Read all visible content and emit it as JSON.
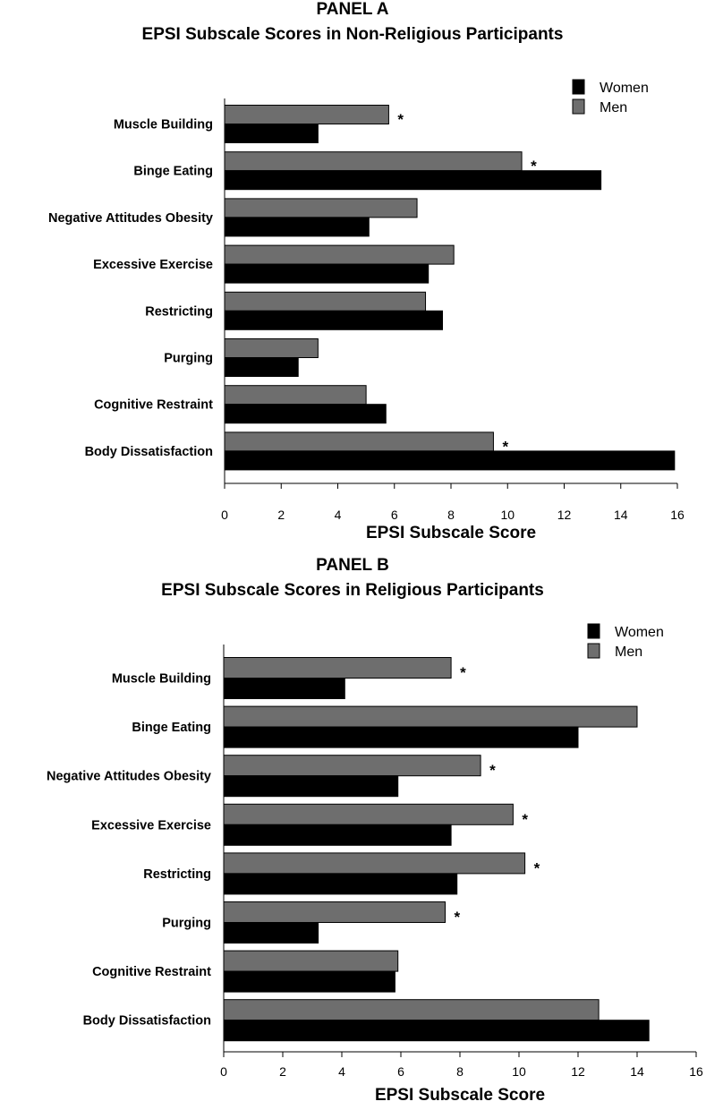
{
  "chart_data": [
    {
      "type": "bar",
      "orientation": "horizontal",
      "title": "PANEL A",
      "subtitle": "EPSI Subscale Scores in Non-Religious Participants",
      "xlabel": "EPSI Subscale Score",
      "ylabel": "",
      "xlim": [
        0,
        16
      ],
      "xticks": [
        "0",
        "2",
        "4",
        "6",
        "8",
        "10",
        "12",
        "14",
        "16"
      ],
      "categories": [
        "Muscle Building",
        "Binge Eating",
        "Negative Attitudes Obesity",
        "Excessive Exercise",
        "Restricting",
        "Purging",
        "Cognitive Restraint",
        "Body Dissatisfaction"
      ],
      "series": [
        {
          "name": "Women",
          "color": "#000000",
          "values": [
            3.3,
            13.3,
            5.1,
            7.2,
            7.7,
            2.6,
            5.7,
            15.9
          ]
        },
        {
          "name": "Men",
          "color": "#6e6e6e",
          "values": [
            5.8,
            10.5,
            6.8,
            8.1,
            7.1,
            3.3,
            5.0,
            9.5
          ]
        }
      ],
      "significance": [
        "*",
        "*",
        "",
        "",
        "",
        "",
        "",
        "*"
      ],
      "legend_position": "top-right",
      "grid": false
    },
    {
      "type": "bar",
      "orientation": "horizontal",
      "title": "PANEL B",
      "subtitle": "EPSI Subscale Scores in Religious Participants",
      "xlabel": "EPSI Subscale Score",
      "ylabel": "",
      "xlim": [
        0,
        16
      ],
      "xticks": [
        "0",
        "2",
        "4",
        "6",
        "8",
        "10",
        "12",
        "14",
        "16"
      ],
      "categories": [
        "Muscle Building",
        "Binge Eating",
        "Negative Attitudes Obesity",
        "Excessive Exercise",
        "Restricting",
        "Purging",
        "Cognitive Restraint",
        "Body Dissatisfaction"
      ],
      "series": [
        {
          "name": "Women",
          "color": "#000000",
          "values": [
            4.1,
            12.0,
            5.9,
            7.7,
            7.9,
            3.2,
            5.8,
            14.4
          ]
        },
        {
          "name": "Men",
          "color": "#6e6e6e",
          "values": [
            7.7,
            14.0,
            8.7,
            9.8,
            10.2,
            7.5,
            5.9,
            12.7
          ]
        }
      ],
      "significance": [
        "*",
        "",
        "*",
        "*",
        "*",
        "*",
        "",
        ""
      ],
      "legend_position": "top-right",
      "grid": false
    }
  ]
}
